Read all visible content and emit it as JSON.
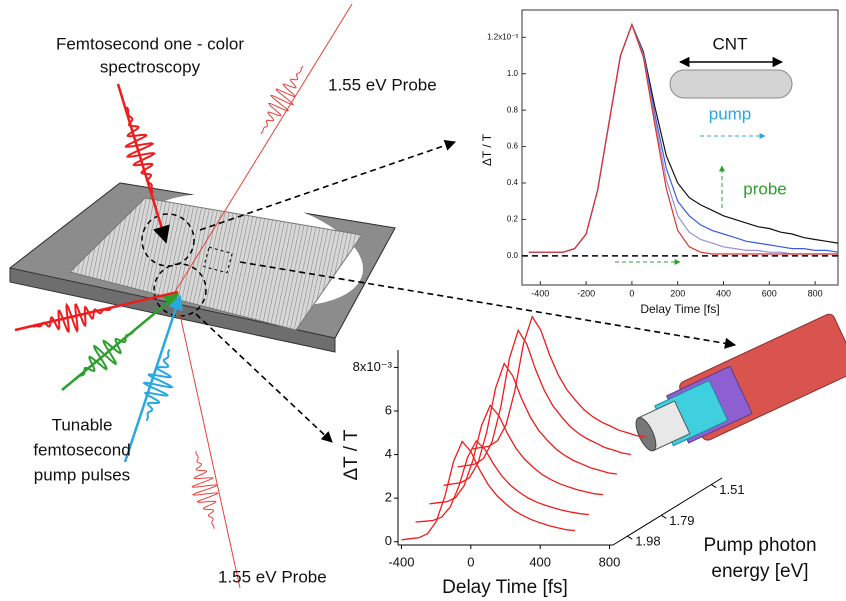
{
  "labels": {
    "spectroscopy": [
      "Femtosecond one - color",
      "spectroscopy"
    ],
    "probe_top": "1.55 eV Probe",
    "probe_bottom": "1.55 eV Probe",
    "pump": [
      "Tunable",
      "femtosecond",
      "pump pulses"
    ]
  },
  "chart_data": [
    {
      "type": "line",
      "xlabel": "Delay Time [fs]",
      "ylabel": "ΔT / T",
      "annotations": {
        "cnt": "CNT",
        "pump": "pump",
        "probe": "probe"
      },
      "x": [
        -450,
        -400,
        -350,
        -300,
        -250,
        -200,
        -150,
        -100,
        -50,
        0,
        50,
        100,
        150,
        200,
        250,
        300,
        350,
        400,
        450,
        500,
        550,
        600,
        650,
        700,
        750,
        800,
        850,
        900
      ],
      "series": [
        {
          "color": "#111111",
          "values": [
            0.02,
            0.02,
            0.02,
            0.02,
            0.04,
            0.12,
            0.36,
            0.73,
            1.1,
            1.27,
            1.12,
            0.82,
            0.55,
            0.4,
            0.32,
            0.28,
            0.25,
            0.22,
            0.2,
            0.18,
            0.16,
            0.15,
            0.13,
            0.12,
            0.1,
            0.09,
            0.08,
            0.07
          ]
        },
        {
          "color": "#3b5bdb",
          "values": [
            0.02,
            0.02,
            0.02,
            0.02,
            0.04,
            0.12,
            0.36,
            0.73,
            1.1,
            1.27,
            1.11,
            0.78,
            0.48,
            0.3,
            0.22,
            0.17,
            0.14,
            0.12,
            0.1,
            0.08,
            0.07,
            0.06,
            0.05,
            0.04,
            0.04,
            0.03,
            0.03,
            0.02
          ]
        },
        {
          "color": "#9b8fd8",
          "values": [
            0.02,
            0.02,
            0.02,
            0.02,
            0.04,
            0.12,
            0.36,
            0.73,
            1.1,
            1.27,
            1.1,
            0.75,
            0.42,
            0.22,
            0.13,
            0.09,
            0.07,
            0.05,
            0.04,
            0.03,
            0.03,
            0.02,
            0.02,
            0.01,
            0.01,
            0.01,
            0.01,
            0.01
          ]
        },
        {
          "color": "#e0322c",
          "values": [
            0.02,
            0.02,
            0.02,
            0.02,
            0.04,
            0.12,
            0.36,
            0.73,
            1.1,
            1.27,
            1.09,
            0.72,
            0.37,
            0.14,
            0.05,
            0.02,
            0.01,
            0.01,
            0.01,
            0.01,
            0.01,
            0.01,
            0.01,
            0.01,
            0.01,
            0.01,
            0.01,
            0.01
          ]
        }
      ],
      "xlim": [
        -480,
        900
      ],
      "ylim": [
        -0.16,
        1.35
      ],
      "xticks": [
        -400,
        -200,
        0,
        200,
        400,
        600,
        800
      ],
      "yticks": [
        {
          "value": 0,
          "label": "0.0"
        },
        0.2,
        0.4,
        0.6,
        0.8,
        {
          "value": 1,
          "label": "1.0"
        },
        {
          "value": 1.2,
          "label": "1.2x10⁻³"
        }
      ]
    },
    {
      "type": "waterfall",
      "xlabel": "Delay Time [fs]",
      "ylabel": "ΔT / T",
      "zlabel": [
        "Pump photon",
        "energy  [eV]"
      ],
      "x": [
        -400,
        -350,
        -300,
        -250,
        -200,
        -150,
        -100,
        -50,
        0,
        50,
        100,
        150,
        200,
        250,
        300,
        350,
        400,
        450,
        500,
        550,
        600
      ],
      "series": [
        {
          "color": "#ee1c1c",
          "values": [
            0.09,
            0.14,
            0.18,
            0.37,
            0.92,
            2.07,
            3.68,
            4.6,
            4.14,
            3.31,
            2.62,
            2.12,
            1.75,
            1.43,
            1.2,
            1.01,
            0.87,
            0.74,
            0.64,
            0.55,
            0.51
          ]
        },
        {
          "color": "#ee1c1c",
          "values": [
            0.08,
            0.11,
            0.15,
            0.3,
            0.76,
            1.71,
            3.04,
            3.8,
            3.42,
            2.74,
            2.17,
            1.75,
            1.44,
            1.18,
            0.99,
            0.84,
            0.72,
            0.61,
            0.53,
            0.46,
            0.42
          ]
        },
        {
          "color": "#ee1c1c",
          "values": [
            0.09,
            0.14,
            0.18,
            0.37,
            0.92,
            2.07,
            3.68,
            4.6,
            4.14,
            3.31,
            2.62,
            2.12,
            1.75,
            1.43,
            1.2,
            1.01,
            0.87,
            0.74,
            0.64,
            0.55,
            0.51
          ]
        },
        {
          "color": "#ee1c1c",
          "values": [
            0.11,
            0.17,
            0.23,
            0.46,
            1.14,
            2.57,
            4.56,
            5.7,
            5.13,
            4.1,
            3.25,
            2.62,
            2.17,
            1.77,
            1.48,
            1.25,
            1.08,
            0.91,
            0.8,
            0.68,
            0.63
          ]
        },
        {
          "color": "#ee1c1c",
          "values": [
            0.13,
            0.19,
            0.26,
            0.51,
            1.28,
            2.88,
            5.12,
            6.4,
            5.76,
            4.61,
            3.65,
            2.94,
            2.43,
            1.98,
            1.66,
            1.41,
            1.22,
            1.02,
            0.9,
            0.77,
            0.7
          ]
        },
        {
          "color": "#ee1c1c",
          "values": [
            0.12,
            0.19,
            0.25,
            0.5,
            1.24,
            2.79,
            4.96,
            6.2,
            5.58,
            4.46,
            3.53,
            2.85,
            2.36,
            1.92,
            1.61,
            1.36,
            1.18,
            0.99,
            0.87,
            0.74,
            0.68
          ]
        }
      ],
      "xlim": [
        -420,
        820
      ],
      "ylim": [
        -0.15,
        8.8
      ],
      "zlim": [
        2.06,
        1.45
      ],
      "xticks": [
        -400,
        0,
        400,
        800
      ],
      "yticks": [
        0,
        2,
        4,
        6,
        {
          "value": 8,
          "label": "8x10⁻³"
        }
      ],
      "zticks": [
        1.98,
        1.79,
        1.51
      ]
    }
  ]
}
